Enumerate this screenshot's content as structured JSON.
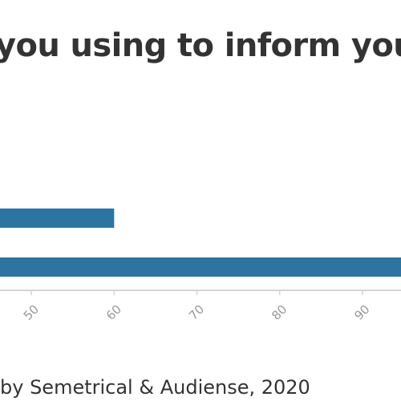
{
  "title": "you using to inform you",
  "source_note": "by Semetrical & Audiense, 2020",
  "colors": {
    "bar": "#2e74a0",
    "axis": "#d4d4d4",
    "tick_label": "#999999",
    "text": "#333333"
  },
  "chart_data": {
    "type": "bar",
    "orientation": "horizontal",
    "categories": [
      "",
      ""
    ],
    "values": [
      60,
      100
    ],
    "x_ticks": [
      "50",
      "60",
      "70",
      "80",
      "90"
    ],
    "xlim": [
      40,
      100
    ],
    "grid": false,
    "legend": "none"
  }
}
